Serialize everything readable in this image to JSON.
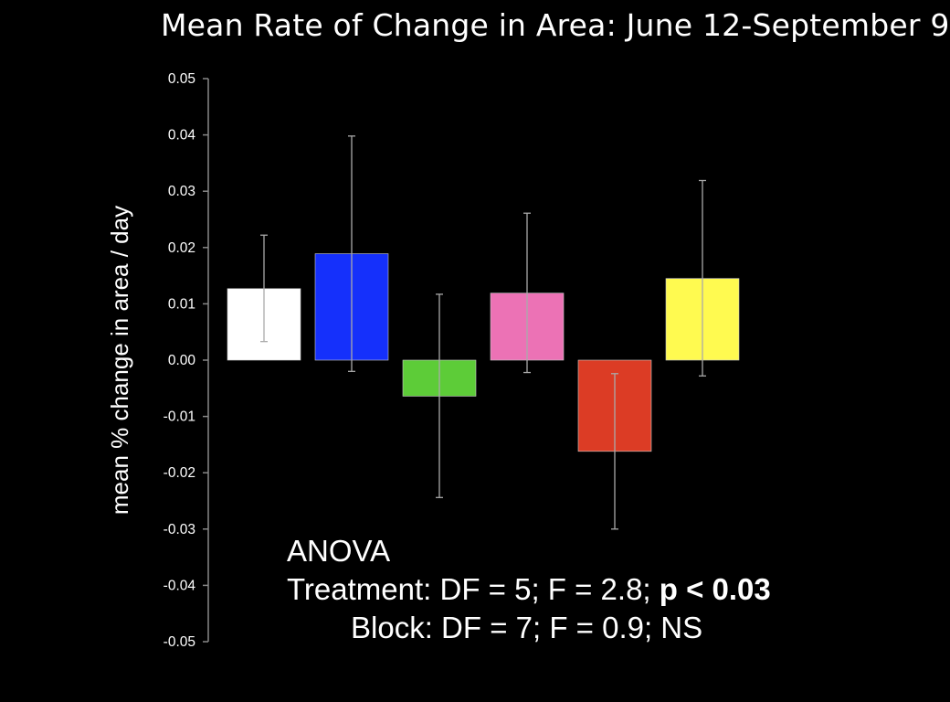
{
  "chart_data": {
    "type": "bar",
    "title": "Mean Rate of Change in Area: June 12-September 9",
    "xlabel": "",
    "ylabel": "mean % change in area / day",
    "ylim": [
      -0.05,
      0.05
    ],
    "yticks": [
      "0.05",
      "0.04",
      "0.03",
      "0.02",
      "0.01",
      "0.00",
      "-0.01",
      "-0.02",
      "-0.03",
      "-0.04",
      "-0.05"
    ],
    "ytick_values": [
      0.05,
      0.04,
      0.03,
      0.02,
      0.01,
      0.0,
      -0.01,
      -0.02,
      -0.03,
      -0.04,
      -0.05
    ],
    "grid": false,
    "bars": [
      {
        "value": 0.0127,
        "err_low": 0.0033,
        "err_high": 0.0222,
        "color": "#ffffff"
      },
      {
        "value": 0.0189,
        "err_low": -0.002,
        "err_high": 0.0398,
        "color": "#1530fb"
      },
      {
        "value": -0.0064,
        "err_low": -0.0244,
        "err_high": 0.0117,
        "color": "#5dcc38"
      },
      {
        "value": 0.0119,
        "err_low": -0.0022,
        "err_high": 0.0261,
        "color": "#ec72b5"
      },
      {
        "value": -0.0162,
        "err_low": -0.03,
        "err_high": -0.0024,
        "color": "#dc3c25"
      },
      {
        "value": 0.0145,
        "err_low": -0.0028,
        "err_high": 0.0319,
        "color": "#fffa50"
      }
    ],
    "errorbar_color": "#aaaaaa",
    "axis_color": "#888888"
  },
  "stats": {
    "line1": "ANOVA",
    "line2_prefix": "Treatment: DF = 5; F = 2.8; ",
    "line2_bold": "p < 0.03",
    "line3": "Block: DF = 7; F = 0.9; NS"
  }
}
